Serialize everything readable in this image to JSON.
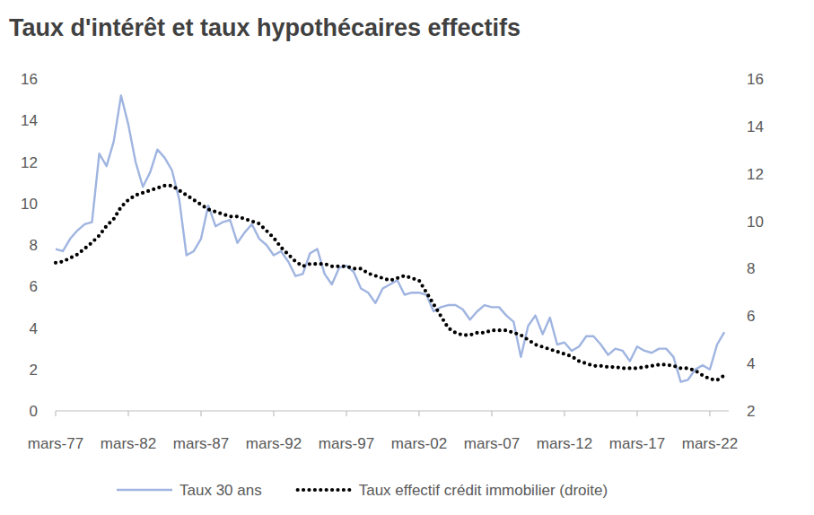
{
  "chart_data": {
    "type": "line",
    "title": "Taux d'intérêt et taux hypothécaires effectifs",
    "categories": [
      "mars-77",
      null,
      null,
      null,
      null,
      null,
      null,
      null,
      null,
      null,
      "mars-82",
      null,
      null,
      null,
      null,
      null,
      null,
      null,
      null,
      null,
      "mars-87",
      null,
      null,
      null,
      null,
      null,
      null,
      null,
      null,
      null,
      "mars-92",
      null,
      null,
      null,
      null,
      null,
      null,
      null,
      null,
      null,
      "mars-97",
      null,
      null,
      null,
      null,
      null,
      null,
      null,
      null,
      null,
      "mars-02",
      null,
      null,
      null,
      null,
      null,
      null,
      null,
      null,
      null,
      "mars-07",
      null,
      null,
      null,
      null,
      null,
      null,
      null,
      null,
      null,
      "mars-12",
      null,
      null,
      null,
      null,
      null,
      null,
      null,
      null,
      null,
      "mars-17",
      null,
      null,
      null,
      null,
      null,
      null,
      null,
      null,
      null,
      "mars-22",
      null,
      null
    ],
    "series": [
      {
        "name": "Taux 30 ans",
        "color": "#9fb4e0",
        "line_style": "solid",
        "values": [
          7.8,
          7.7,
          8.3,
          8.7,
          9.0,
          9.1,
          12.4,
          11.8,
          13.0,
          15.2,
          13.8,
          12.0,
          10.8,
          11.5,
          12.6,
          12.2,
          11.6,
          10.2,
          7.5,
          7.7,
          8.3,
          9.9,
          8.9,
          9.1,
          9.2,
          8.1,
          8.6,
          9.0,
          8.3,
          8.0,
          7.5,
          7.7,
          7.2,
          6.5,
          6.6,
          7.6,
          7.8,
          6.6,
          6.1,
          6.9,
          7.0,
          6.7,
          5.9,
          5.7,
          5.2,
          5.9,
          6.1,
          6.3,
          5.6,
          5.7,
          5.7,
          5.6,
          4.8,
          5.0,
          5.1,
          5.1,
          4.9,
          4.4,
          4.8,
          5.1,
          5.0,
          5.0,
          4.6,
          4.3,
          2.6,
          4.1,
          4.6,
          3.7,
          4.5,
          3.2,
          3.3,
          2.9,
          3.1,
          3.6,
          3.6,
          3.2,
          2.7,
          3.0,
          2.9,
          2.4,
          3.1,
          2.9,
          2.8,
          3.0,
          3.0,
          2.6,
          1.4,
          1.5,
          2.0,
          2.2,
          2.0,
          3.2,
          3.8
        ]
      },
      {
        "name": "Taux effectif crédit immobilier (droite)",
        "color": "#000000",
        "line_style": "dotted",
        "axis": "y2",
        "values": [
          8.25,
          8.3,
          8.45,
          8.6,
          8.85,
          9.1,
          9.4,
          9.8,
          10.1,
          10.6,
          10.9,
          11.1,
          11.2,
          11.3,
          11.4,
          11.5,
          11.5,
          11.3,
          11.1,
          10.9,
          10.7,
          10.5,
          10.4,
          10.3,
          10.2,
          10.2,
          10.1,
          10.0,
          9.9,
          9.6,
          9.3,
          8.9,
          8.6,
          8.3,
          8.1,
          8.2,
          8.2,
          8.2,
          8.1,
          8.1,
          8.1,
          8.0,
          8.0,
          7.8,
          7.7,
          7.6,
          7.5,
          7.6,
          7.7,
          7.6,
          7.5,
          7.0,
          6.5,
          6.0,
          5.5,
          5.3,
          5.2,
          5.2,
          5.3,
          5.3,
          5.4,
          5.4,
          5.4,
          5.3,
          5.2,
          5.0,
          4.8,
          4.7,
          4.6,
          4.5,
          4.4,
          4.3,
          4.1,
          4.0,
          3.9,
          3.9,
          3.85,
          3.85,
          3.8,
          3.8,
          3.8,
          3.85,
          3.9,
          3.95,
          3.95,
          3.9,
          3.8,
          3.8,
          3.7,
          3.5,
          3.35,
          3.3,
          3.5
        ]
      }
    ],
    "ylim": [
      0,
      16
    ],
    "yticks": [
      0,
      2,
      4,
      6,
      8,
      10,
      12,
      14,
      16
    ],
    "y2lim": [
      2,
      16
    ],
    "y2ticks": [
      2,
      4,
      6,
      8,
      10,
      12,
      14,
      16
    ],
    "grid": false,
    "legend": "bottom"
  }
}
